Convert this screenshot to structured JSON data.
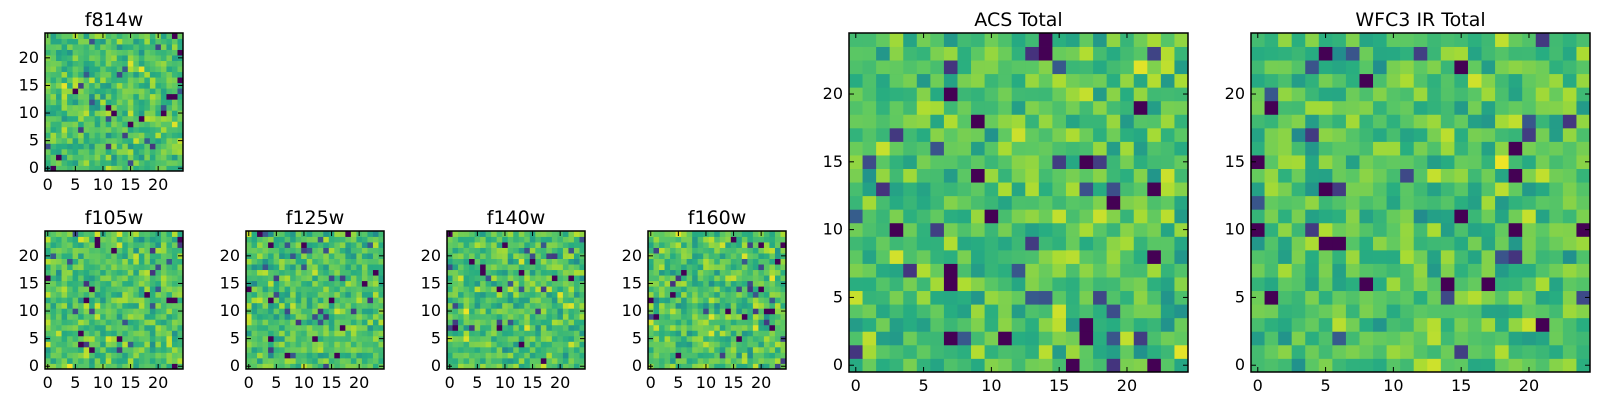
{
  "chart_data": [
    {
      "id": "f814w",
      "type": "heatmap",
      "title": "f814w",
      "grid_size": 25,
      "seed": 814,
      "colormap": "viridis",
      "xlim": [
        0,
        25
      ],
      "ylim": [
        0,
        25
      ],
      "xticks": [
        "0",
        "5",
        "10",
        "15",
        "20"
      ],
      "yticks": [
        "0",
        "5",
        "10",
        "15",
        "20"
      ],
      "grid": false
    },
    {
      "id": "f105w",
      "type": "heatmap",
      "title": "f105w",
      "grid_size": 25,
      "seed": 105,
      "colormap": "viridis",
      "xlim": [
        0,
        25
      ],
      "ylim": [
        0,
        25
      ],
      "xticks": [
        "0",
        "5",
        "10",
        "15",
        "20"
      ],
      "yticks": [
        "0",
        "5",
        "10",
        "15",
        "20"
      ],
      "grid": false
    },
    {
      "id": "f125w",
      "type": "heatmap",
      "title": "f125w",
      "grid_size": 25,
      "seed": 125,
      "colormap": "viridis",
      "xlim": [
        0,
        25
      ],
      "ylim": [
        0,
        25
      ],
      "xticks": [
        "0",
        "5",
        "10",
        "15",
        "20"
      ],
      "yticks": [
        "0",
        "5",
        "10",
        "15",
        "20"
      ],
      "grid": false
    },
    {
      "id": "f140w",
      "type": "heatmap",
      "title": "f140w",
      "grid_size": 25,
      "seed": 140,
      "colormap": "viridis",
      "xlim": [
        0,
        25
      ],
      "ylim": [
        0,
        25
      ],
      "xticks": [
        "0",
        "5",
        "10",
        "15",
        "20"
      ],
      "yticks": [
        "0",
        "5",
        "10",
        "15",
        "20"
      ],
      "grid": false
    },
    {
      "id": "f160w",
      "type": "heatmap",
      "title": "f160w",
      "grid_size": 25,
      "seed": 160,
      "colormap": "viridis",
      "xlim": [
        0,
        25
      ],
      "ylim": [
        0,
        25
      ],
      "xticks": [
        "0",
        "5",
        "10",
        "15",
        "20"
      ],
      "yticks": [
        "0",
        "5",
        "10",
        "15",
        "20"
      ],
      "grid": false
    },
    {
      "id": "acs-total",
      "type": "heatmap",
      "title": "ACS Total",
      "grid_size": 25,
      "seed": 7001,
      "colormap": "viridis",
      "xlim": [
        0,
        25
      ],
      "ylim": [
        0,
        25
      ],
      "xticks": [
        "0",
        "5",
        "10",
        "15",
        "20"
      ],
      "yticks": [
        "0",
        "5",
        "10",
        "15",
        "20"
      ],
      "grid": false
    },
    {
      "id": "wfc3-ir-total",
      "type": "heatmap",
      "title": "WFC3 IR Total",
      "grid_size": 25,
      "seed": 9003,
      "colormap": "viridis",
      "xlim": [
        0,
        25
      ],
      "ylim": [
        0,
        25
      ],
      "xticks": [
        "0",
        "5",
        "10",
        "15",
        "20"
      ],
      "yticks": [
        "0",
        "5",
        "10",
        "15",
        "20"
      ],
      "grid": false
    }
  ]
}
